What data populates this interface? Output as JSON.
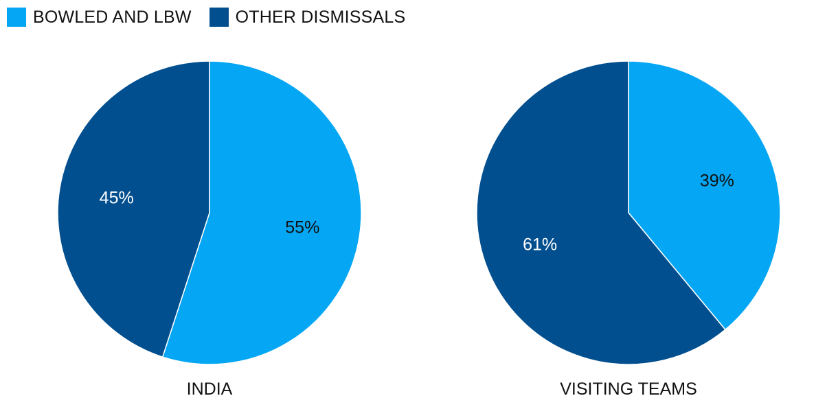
{
  "legend": [
    {
      "label": "BOWLED AND LBW",
      "color": "#05a6f3"
    },
    {
      "label": "OTHER DISMISSALS",
      "color": "#024f8f"
    }
  ],
  "chart_data": [
    {
      "type": "pie",
      "title": "INDIA",
      "slices": [
        {
          "label": "BOWLED AND LBW",
          "value": 55,
          "display": "55%",
          "color": "#05a6f3",
          "text_color": "#111111"
        },
        {
          "label": "OTHER DISMISSALS",
          "value": 45,
          "display": "45%",
          "color": "#024f8f",
          "text_color": "#ffffff"
        }
      ]
    },
    {
      "type": "pie",
      "title": "VISITING TEAMS",
      "slices": [
        {
          "label": "BOWLED AND LBW",
          "value": 39,
          "display": "39%",
          "color": "#05a6f3",
          "text_color": "#111111"
        },
        {
          "label": "OTHER DISMISSALS",
          "value": 61,
          "display": "61%",
          "color": "#024f8f",
          "text_color": "#ffffff"
        }
      ]
    }
  ]
}
